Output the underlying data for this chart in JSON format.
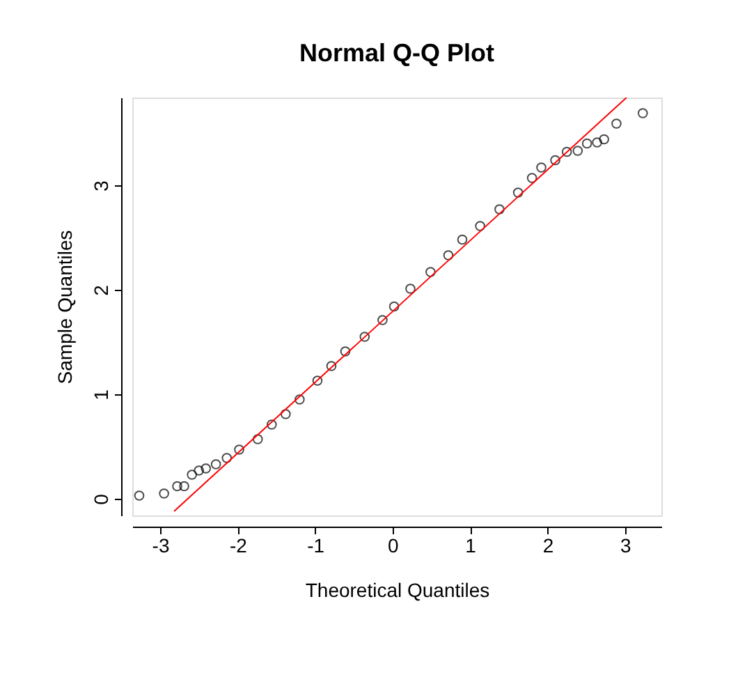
{
  "chart_data": {
    "type": "scatter",
    "title": "Normal Q-Q Plot",
    "xlabel": "Theoretical Quantiles",
    "ylabel": "Sample Quantiles",
    "xlim": [
      -3.36,
      3.47
    ],
    "ylim": [
      -0.16,
      3.84
    ],
    "xticks": [
      -3,
      -2,
      -1,
      0,
      1,
      2,
      3
    ],
    "yticks": [
      0,
      1,
      2,
      3
    ],
    "grid": false,
    "marker": "circle",
    "series": [
      {
        "color": "#000000",
        "x": [
          -3.27,
          -2.95,
          -2.78,
          -2.69,
          -2.59,
          -2.5,
          -2.41,
          -2.28,
          -2.14,
          -1.98,
          -1.74,
          -1.56,
          -1.38,
          -1.2,
          -0.97,
          -0.79,
          -0.61,
          -0.36,
          -0.13,
          0.02,
          0.23,
          0.49,
          0.72,
          0.9,
          1.13,
          1.38,
          1.62,
          1.8,
          1.92,
          2.1,
          2.25,
          2.39,
          2.51,
          2.64,
          2.73,
          2.89,
          3.23
        ],
        "values": [
          0.03,
          0.05,
          0.12,
          0.12,
          0.23,
          0.27,
          0.29,
          0.33,
          0.39,
          0.47,
          0.57,
          0.71,
          0.81,
          0.95,
          1.13,
          1.27,
          1.41,
          1.55,
          1.71,
          1.84,
          2.01,
          2.17,
          2.33,
          2.48,
          2.61,
          2.77,
          2.93,
          3.07,
          3.17,
          3.24,
          3.32,
          3.33,
          3.4,
          3.41,
          3.44,
          3.59,
          3.69
        ]
      },
      {
        "type": "line",
        "marker": "none",
        "color": "#ff0000",
        "x": [
          -2.82,
          3.02
        ],
        "values": [
          -0.12,
          3.84
        ]
      }
    ]
  }
}
